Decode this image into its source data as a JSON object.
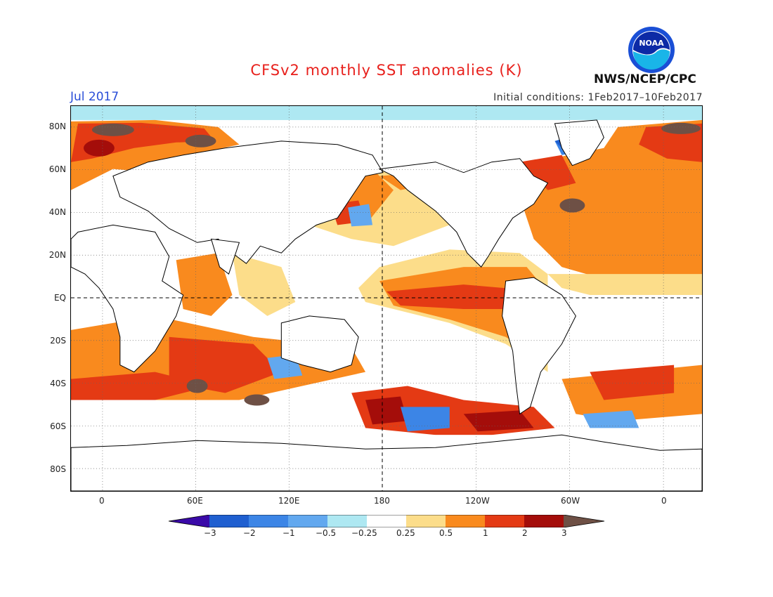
{
  "header": {
    "title": "CFSv2 monthly SST anomalies (K)",
    "month": "Jul 2017",
    "initial_conditions": "Initial conditions: 1Feb2017–10Feb2017",
    "agency": "NWS/NCEP/CPC",
    "logo_text": "NOAA"
  },
  "axes": {
    "y_labels": [
      "80N",
      "60N",
      "40N",
      "20N",
      "EQ",
      "20S",
      "40S",
      "60S",
      "80S"
    ],
    "x_labels": [
      "0",
      "60E",
      "120E",
      "180",
      "120W",
      "60W",
      "0"
    ]
  },
  "colorbar": {
    "labels": [
      "−3",
      "−2",
      "−1",
      "−0.5",
      "−0.25",
      "0.25",
      "0.5",
      "1",
      "2",
      "3"
    ],
    "colors": [
      "#3a0aa8",
      "#1f5fd0",
      "#3c85e6",
      "#62a8ef",
      "#aee8f2",
      "#ffffff",
      "#fcdd8a",
      "#f98a1e",
      "#e43a14",
      "#a40d0a",
      "#6e5045"
    ]
  },
  "map": {
    "projection": "cylindrical equidistant",
    "dashed_lines": [
      "equator",
      "180 meridian"
    ],
    "gridlines": "dotted"
  }
}
